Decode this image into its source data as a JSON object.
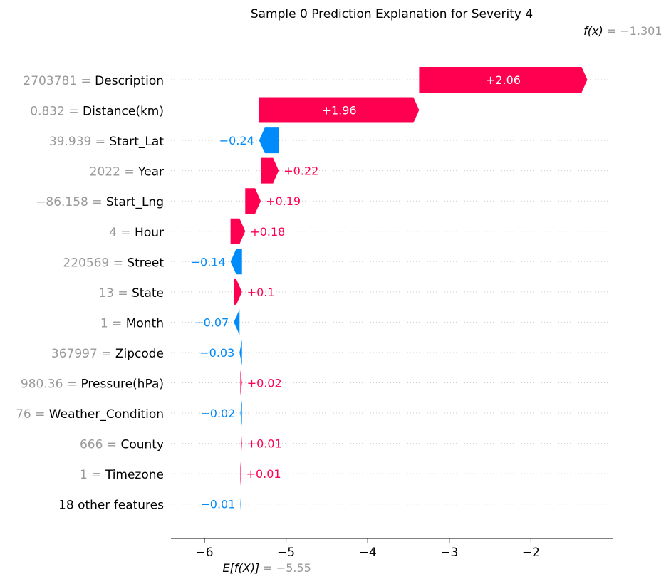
{
  "chart_data": {
    "type": "bar",
    "title": "Sample 0 Prediction Explanation for Severity 4",
    "features": [
      {
        "value": "2703781",
        "name": "Description",
        "shap": 2.06,
        "label": "+2.06"
      },
      {
        "value": "0.832",
        "name": "Distance(km)",
        "shap": 1.96,
        "label": "+1.96"
      },
      {
        "value": "39.939",
        "name": "Start_Lat",
        "shap": -0.24,
        "label": "−0.24"
      },
      {
        "value": "2022",
        "name": "Year",
        "shap": 0.22,
        "label": "+0.22"
      },
      {
        "value": "−86.158",
        "name": "Start_Lng",
        "shap": 0.19,
        "label": "+0.19"
      },
      {
        "value": "4",
        "name": "Hour",
        "shap": 0.18,
        "label": "+0.18"
      },
      {
        "value": "220569",
        "name": "Street",
        "shap": -0.14,
        "label": "−0.14"
      },
      {
        "value": "13",
        "name": "State",
        "shap": 0.1,
        "label": "+0.1"
      },
      {
        "value": "1",
        "name": "Month",
        "shap": -0.07,
        "label": "−0.07"
      },
      {
        "value": "367997",
        "name": "Zipcode",
        "shap": -0.03,
        "label": "−0.03"
      },
      {
        "value": "980.36",
        "name": "Pressure(hPa)",
        "shap": 0.02,
        "label": "+0.02"
      },
      {
        "value": "76",
        "name": "Weather_Condition",
        "shap": -0.02,
        "label": "−0.02"
      },
      {
        "value": "666",
        "name": "County",
        "shap": 0.01,
        "label": "+0.01"
      },
      {
        "value": "1",
        "name": "Timezone",
        "shap": 0.01,
        "label": "+0.01"
      },
      {
        "value": "",
        "name": "18 other features",
        "shap": -0.01,
        "label": "−0.01"
      }
    ],
    "base_value": -5.55,
    "base_label_name": "E[f(X)]",
    "base_label_value": "−5.55",
    "fx_value": -1.301,
    "fx_label_name": "f(x)",
    "fx_label_value": "−1.301",
    "xticks": [
      -6,
      -5,
      -4,
      -3,
      -2
    ],
    "xtick_labels": [
      "−6",
      "−5",
      "−4",
      "−3",
      "−2"
    ],
    "xlim": [
      -6.41,
      -1.0
    ],
    "colors": {
      "positive": "#ff0051",
      "negative": "#008bfb",
      "positive_text": "#ff0051",
      "negative_text": "#008bfb"
    }
  }
}
